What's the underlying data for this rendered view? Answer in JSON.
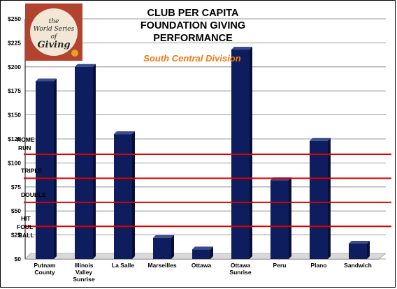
{
  "chart_data": {
    "type": "bar",
    "title_lines": [
      "CLUB PER CAPITA",
      "FOUNDATION GIVING",
      "PERFORMANCE"
    ],
    "subtitle": "South Central  Division",
    "categories": [
      [
        "Putnam",
        "County"
      ],
      [
        "Illinois",
        "Valley",
        "Sunrise"
      ],
      [
        "La Salle"
      ],
      [
        "Marseilles"
      ],
      [
        "Ottawa"
      ],
      [
        "Ottawa",
        "Sunrise"
      ],
      [
        "Peru"
      ],
      [
        "Plano"
      ],
      [
        "Sandwich"
      ]
    ],
    "values": [
      185,
      200,
      130,
      22,
      10,
      218,
      82,
      123,
      16
    ],
    "ylim": [
      0,
      250
    ],
    "yticks": [
      "$0",
      "$25",
      "$50",
      "$75",
      "$100",
      "$125",
      "$150",
      "$175",
      "$200",
      "$225",
      "$250"
    ],
    "grid": true,
    "bar_color": "#0d1d5e",
    "thresholds": [
      {
        "label": "HOME RUN",
        "value": 109
      },
      {
        "label": "TRIPLE",
        "value": 84
      },
      {
        "label": "DOUBLE",
        "value": 59
      },
      {
        "label": "HIT",
        "value": 34
      },
      {
        "label": "FOUL BALL",
        "value": 0
      }
    ],
    "threshold_color": "#e00000"
  },
  "logo": {
    "lines": [
      "the",
      "World Series",
      "of",
      "Giving"
    ]
  }
}
